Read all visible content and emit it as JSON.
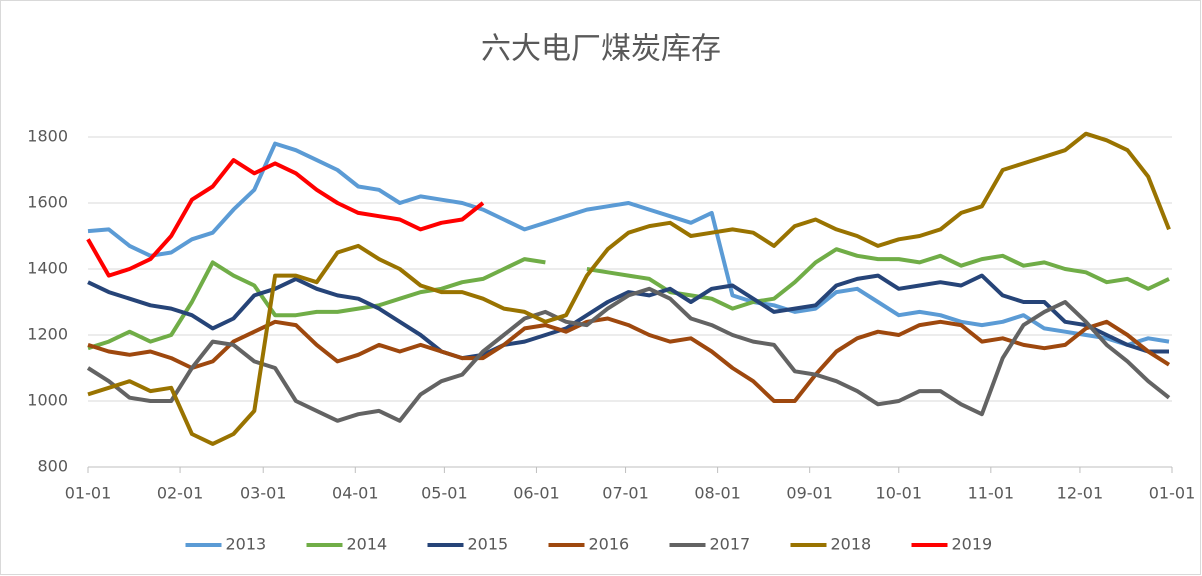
{
  "chart_data": {
    "type": "line",
    "title": "六大电厂煤炭库存",
    "x": [
      0,
      7,
      14,
      21,
      28,
      35,
      42,
      49,
      56,
      63,
      70,
      77,
      84,
      91,
      98,
      105,
      112,
      119,
      126,
      133,
      140,
      147,
      154,
      161,
      168,
      175,
      182,
      189,
      196,
      203,
      210,
      217,
      224,
      231,
      238,
      245,
      252,
      259,
      266,
      273,
      280,
      287,
      294,
      301,
      308,
      315,
      322,
      329,
      336,
      343,
      350,
      357,
      364
    ],
    "xlim": [
      0,
      365
    ],
    "xticks": [
      {
        "value": 0,
        "label": "01-01"
      },
      {
        "value": 31,
        "label": "02-01"
      },
      {
        "value": 59,
        "label": "03-01"
      },
      {
        "value": 90,
        "label": "04-01"
      },
      {
        "value": 120,
        "label": "05-01"
      },
      {
        "value": 151,
        "label": "06-01"
      },
      {
        "value": 181,
        "label": "07-01"
      },
      {
        "value": 212,
        "label": "08-01"
      },
      {
        "value": 243,
        "label": "09-01"
      },
      {
        "value": 273,
        "label": "10-01"
      },
      {
        "value": 304,
        "label": "11-01"
      },
      {
        "value": 334,
        "label": "12-01"
      },
      {
        "value": 365,
        "label": "01-01"
      }
    ],
    "ylim": [
      800,
      1800
    ],
    "yticks": [
      800,
      1000,
      1200,
      1400,
      1600,
      1800
    ],
    "grid": true,
    "legend": "bottom",
    "series": [
      {
        "name": "2013",
        "color": "#5b9bd5",
        "values": [
          1515,
          1520,
          1470,
          1440,
          1450,
          1490,
          1510,
          1580,
          1640,
          1780,
          1760,
          1730,
          1700,
          1650,
          1640,
          1600,
          1620,
          1610,
          1600,
          1580,
          1550,
          1520,
          1540,
          1560,
          1580,
          1590,
          1600,
          1580,
          1560,
          1540,
          1570,
          1320,
          1300,
          1290,
          1270,
          1280,
          1330,
          1340,
          1300,
          1260,
          1270,
          1260,
          1240,
          1230,
          1240,
          1260,
          1220,
          1210,
          1200,
          1190,
          1170,
          1190,
          1180
        ]
      },
      {
        "name": "2014",
        "color": "#70ad47",
        "values": [
          1160,
          1180,
          1210,
          1180,
          1200,
          1300,
          1420,
          1380,
          1350,
          1260,
          1260,
          1270,
          1270,
          1280,
          1290,
          1310,
          1330,
          1340,
          1360,
          1370,
          1400,
          1430,
          1420,
          null,
          1400,
          1390,
          1380,
          1370,
          1330,
          1320,
          1310,
          1280,
          1300,
          1310,
          1360,
          1420,
          1460,
          1440,
          1430,
          1430,
          1420,
          1440,
          1410,
          1430,
          1440,
          1410,
          1420,
          1400,
          1390,
          1360,
          1370,
          1340,
          1370
        ]
      },
      {
        "name": "2015",
        "color": "#264478",
        "values": [
          1360,
          1330,
          1310,
          1290,
          1280,
          1260,
          1220,
          1250,
          1320,
          1340,
          1370,
          1340,
          1320,
          1310,
          1280,
          1240,
          1200,
          1150,
          1130,
          1140,
          1170,
          1180,
          1200,
          1220,
          1260,
          1300,
          1330,
          1320,
          1340,
          1300,
          1340,
          1350,
          1310,
          1270,
          1280,
          1290,
          1350,
          1370,
          1380,
          1340,
          1350,
          1360,
          1350,
          1380,
          1320,
          1300,
          1300,
          1240,
          1230,
          1200,
          1170,
          1150,
          1150
        ]
      },
      {
        "name": "2016",
        "color": "#9e480e",
        "values": [
          1170,
          1150,
          1140,
          1150,
          1130,
          1100,
          1120,
          1180,
          1210,
          1240,
          1230,
          1170,
          1120,
          1140,
          1170,
          1150,
          1170,
          1150,
          1130,
          1130,
          1170,
          1220,
          1230,
          1210,
          1240,
          1250,
          1230,
          1200,
          1180,
          1190,
          1150,
          1100,
          1060,
          1000,
          1000,
          1080,
          1150,
          1190,
          1210,
          1200,
          1230,
          1240,
          1230,
          1180,
          1190,
          1170,
          1160,
          1170,
          1220,
          1240,
          1200,
          1150,
          1110
        ]
      },
      {
        "name": "2017",
        "color": "#636363",
        "values": [
          1100,
          1060,
          1010,
          1000,
          1000,
          1100,
          1180,
          1170,
          1120,
          1100,
          1000,
          970,
          940,
          960,
          970,
          940,
          1020,
          1060,
          1080,
          1150,
          1200,
          1250,
          1270,
          1240,
          1230,
          1280,
          1320,
          1340,
          1310,
          1250,
          1230,
          1200,
          1180,
          1170,
          1090,
          1080,
          1060,
          1030,
          990,
          1000,
          1030,
          1030,
          990,
          960,
          1130,
          1230,
          1270,
          1300,
          1240,
          1170,
          1120,
          1060,
          1010
        ]
      },
      {
        "name": "2018",
        "color": "#997300",
        "values": [
          1020,
          1040,
          1060,
          1030,
          1040,
          900,
          870,
          900,
          970,
          1380,
          1380,
          1360,
          1450,
          1470,
          1430,
          1400,
          1350,
          1330,
          1330,
          1310,
          1280,
          1270,
          1240,
          1260,
          1380,
          1460,
          1510,
          1530,
          1540,
          1500,
          1510,
          1520,
          1510,
          1470,
          1530,
          1550,
          1520,
          1500,
          1470,
          1490,
          1500,
          1520,
          1570,
          1590,
          1700,
          1720,
          1740,
          1760,
          1810,
          1790,
          1760,
          1680,
          1520
        ]
      },
      {
        "name": "2019",
        "color": "#ff0000",
        "values": [
          1490,
          1380,
          1400,
          1430,
          1500,
          1610,
          1650,
          1730,
          1690,
          1720,
          1690,
          1640,
          1600,
          1570,
          1560,
          1550,
          1520,
          1540,
          1550,
          1600,
          null,
          null,
          null,
          null,
          null,
          null,
          null,
          null,
          null,
          null,
          null,
          null,
          null,
          null,
          null,
          null,
          null,
          null,
          null,
          null,
          null,
          null,
          null,
          null,
          null,
          null,
          null,
          null,
          null,
          null,
          null,
          null,
          null
        ]
      }
    ]
  }
}
